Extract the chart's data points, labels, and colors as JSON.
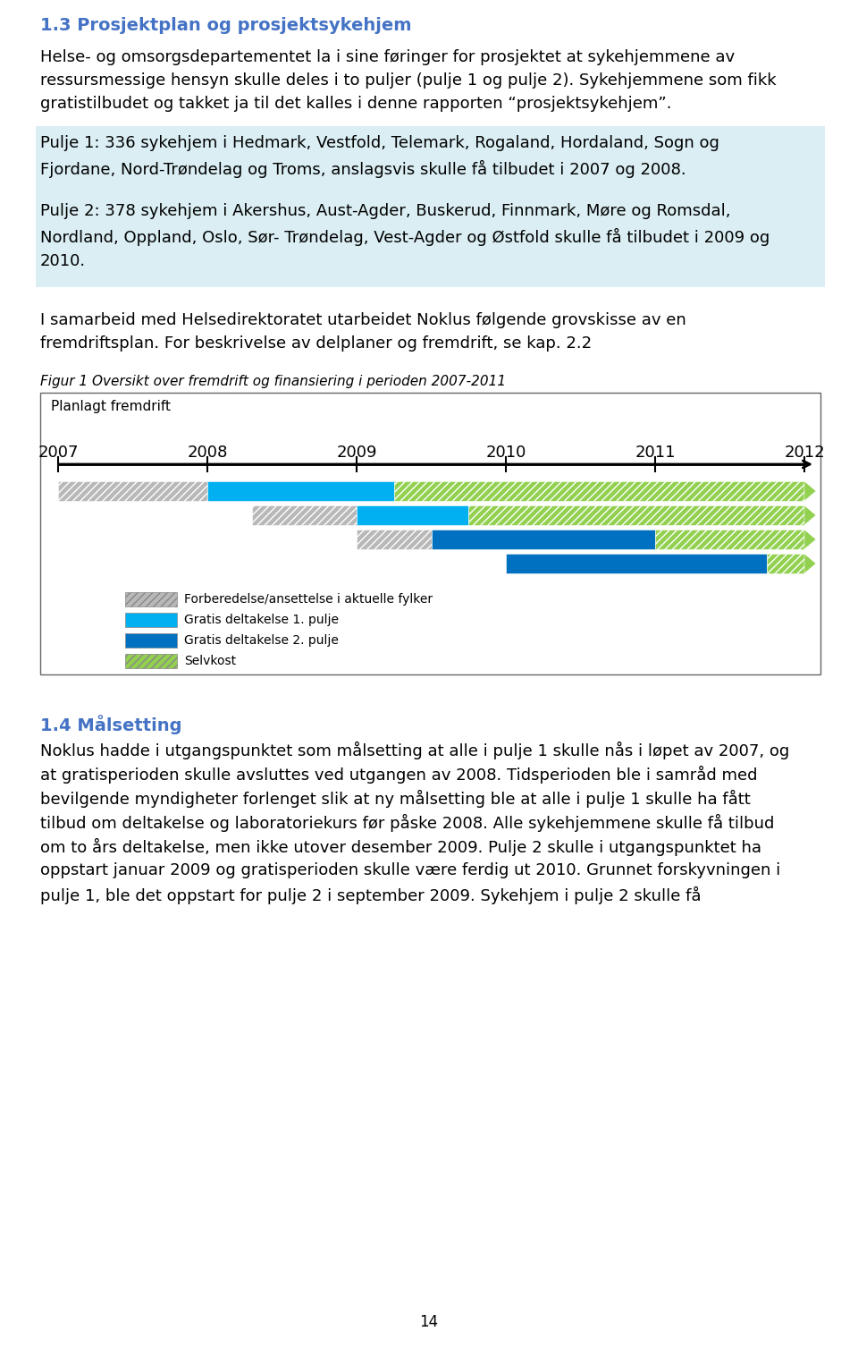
{
  "page_bg": "#ffffff",
  "heading_color": "#4472C4",
  "text_color": "#000000",
  "heading_text": "1.3 Prosjektplan og prosjektsykehjem",
  "para1_lines": [
    "Helse- og omsorgsdepartementet la i sine føringer for prosjektet at sykehjemmene av",
    "ressursmessige hensyn skulle deles i to puljer (pulje 1 og pulje 2). Sykehjemmene som fikk",
    "gratistilbudet og takket ja til det kalles i denne rapporten “prosjektsykehjem”."
  ],
  "box1_bg": "#daeef3",
  "box1_lines": [
    "Pulje 1: 336 sykehjem i Hedmark, Vestfold, Telemark, Rogaland, Hordaland, Sogn og",
    "Fjordane, Nord-Trøndelag og Troms, anslagsvis skulle få tilbudet i 2007 og 2008."
  ],
  "box2_lines": [
    "Pulje 2: 378 sykehjem i Akershus, Aust-Agder, Buskerud, Finnmark, Møre og Romsdal,",
    "Nordland, Oppland, Oslo, Sør- Trøndelag, Vest-Agder og Østfold skulle få tilbudet i 2009 og",
    "2010."
  ],
  "para2_lines": [
    "I samarbeid med Helsedirektoratet utarbeidet Noklus følgende grovskisse av en",
    "fremdriftsplan. For beskrivelse av delplaner og fremdrift, se kap. 2.2"
  ],
  "fig_caption": "Figur 1 Oversikt over fremdrift og finansiering i perioden 2007-2011",
  "fig_title": "Planlagt fremdrift",
  "years": [
    2007,
    2008,
    2009,
    2010,
    2011,
    2012
  ],
  "bar_gray_color": "#b8b8b8",
  "bar_cyan_color": "#00b0f0",
  "bar_blue_color": "#0070c0",
  "bar_green_color": "#92d050",
  "legend_items": [
    {
      "label": "Forberedelse/ansettelse i aktuelle fylker",
      "color": "#b8b8b8",
      "hatch": "////"
    },
    {
      "label": "Gratis deltakelse 1. pulje",
      "color": "#00b0f0",
      "hatch": ""
    },
    {
      "label": "Gratis deltakelse 2. pulje",
      "color": "#0070c0",
      "hatch": ""
    },
    {
      "label": "Selvkost",
      "color": "#92d050",
      "hatch": "////"
    }
  ],
  "heading14_text": "1.4 Målsetting",
  "para3_lines": [
    "Noklus hadde i utgangspunktet som målsetting at alle i pulje 1 skulle nås i løpet av 2007, og",
    "at gratisperioden skulle avsluttes ved utgangen av 2008. Tidsperioden ble i samråd med",
    "bevilgende myndigheter forlenget slik at ny målsetting ble at alle i pulje 1 skulle ha fått",
    "tilbud om deltakelse og laboratoriekurs før påske 2008. Alle sykehjemmene skulle få tilbud",
    "om to års deltakelse, men ikke utover desember 2009. Pulje 2 skulle i utgangspunktet ha",
    "oppstart januar 2009 og gratisperioden skulle være ferdig ut 2010. Grunnet forskyvningen i",
    "pulje 1, ble det oppstart for pulje 2 i september 2009. Sykehjem i pulje 2 skulle få"
  ],
  "page_number": "14"
}
